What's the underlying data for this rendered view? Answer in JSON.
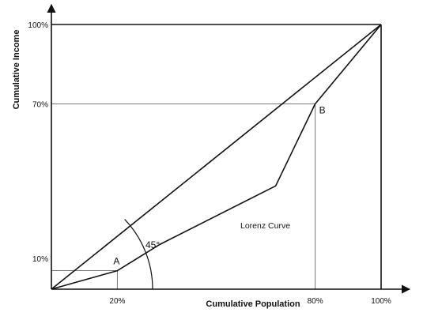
{
  "chart_data": {
    "type": "line",
    "title": "",
    "xlabel": "Cumulative Population",
    "ylabel": "Cumulative Income",
    "xlim": [
      0,
      100
    ],
    "ylim": [
      0,
      100
    ],
    "x_tick_labels": [
      "20%",
      "80%",
      "100%"
    ],
    "y_tick_labels": [
      "10%",
      "70%",
      "100%"
    ],
    "series": [
      {
        "name": "",
        "role": "line of equality",
        "x": [
          0,
          100
        ],
        "y": [
          0,
          100
        ]
      },
      {
        "name": "Lorenz Curve",
        "role": "lorenz curve",
        "x": [
          0,
          20,
          33,
          68,
          80,
          100
        ],
        "y": [
          0,
          7,
          17,
          39,
          70,
          100
        ]
      }
    ],
    "points": [
      {
        "label": "A",
        "x": 20,
        "y": 7
      },
      {
        "label": "B",
        "x": 80,
        "y": 70
      }
    ],
    "annotations": {
      "angle": "45°",
      "curve_label": "Lorenz Curve"
    },
    "grid": false,
    "legend": "none"
  }
}
